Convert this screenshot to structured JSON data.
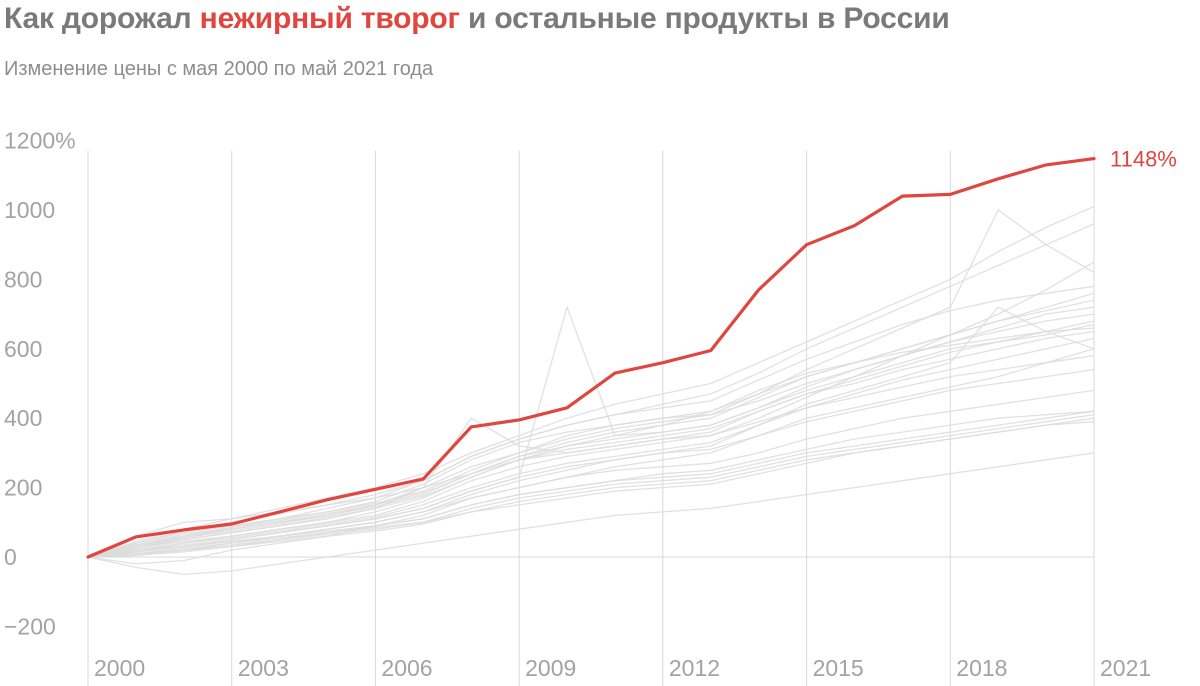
{
  "title": {
    "before": "Как дорожал ",
    "highlight": "нежирный творог",
    "after": " и остальные продукты в России"
  },
  "subtitle": "Изменение цены с мая 2000 по май 2021 года",
  "colors": {
    "highlight": "#e0453e",
    "background_series": "#dcdcdc",
    "grid": "#d9d9d9",
    "tick_text": "#a3a3a3",
    "title": "#7a7a7a"
  },
  "chart_data": {
    "type": "line",
    "xlabel": "",
    "ylabel": "",
    "xlim": [
      2000,
      2021
    ],
    "ylim": [
      -300,
      1200
    ],
    "x_ticks": [
      2000,
      2003,
      2006,
      2009,
      2012,
      2015,
      2018,
      2021
    ],
    "x_tick_labels": [
      "2000",
      "2003",
      "2006",
      "2009",
      "2012",
      "2015",
      "2018",
      "2021"
    ],
    "y_ticks": [
      -200,
      0,
      200,
      400,
      600,
      800,
      1000,
      1200
    ],
    "y_tick_labels": [
      "−200",
      "0",
      "200",
      "400",
      "600",
      "800",
      "1000",
      "1200%"
    ],
    "grid": "vertical lines at x ticks, zero baseline",
    "highlight_series": {
      "name": "нежирный творог",
      "x": [
        2000,
        2001,
        2002,
        2003,
        2004,
        2005,
        2006,
        2007,
        2008,
        2009,
        2010,
        2011,
        2012,
        2013,
        2014,
        2015,
        2016,
        2017,
        2018,
        2019,
        2020,
        2021
      ],
      "values": [
        0,
        58,
        78,
        95,
        130,
        165,
        195,
        225,
        375,
        395,
        430,
        530,
        560,
        595,
        770,
        900,
        955,
        1040,
        1045,
        1090,
        1130,
        1148
      ],
      "end_label": "1148%"
    },
    "background_series_note": "около 90 других продуктов, светло-серые линии",
    "background_series": [
      {
        "values": [
          0,
          30,
          55,
          80,
          100,
          120,
          150,
          200,
          260,
          300,
          350,
          380,
          400,
          420,
          470,
          520,
          560,
          600,
          640,
          680,
          710,
          740
        ]
      },
      {
        "values": [
          0,
          20,
          40,
          60,
          80,
          100,
          130,
          170,
          230,
          280,
          320,
          350,
          360,
          380,
          430,
          480,
          520,
          560,
          600,
          620,
          640,
          670
        ]
      },
      {
        "values": [
          0,
          -20,
          -10,
          20,
          40,
          60,
          90,
          120,
          170,
          200,
          230,
          260,
          280,
          300,
          350,
          400,
          430,
          460,
          490,
          520,
          560,
          600
        ]
      },
      {
        "values": [
          0,
          40,
          70,
          90,
          110,
          130,
          160,
          210,
          280,
          330,
          360,
          380,
          400,
          410,
          450,
          500,
          540,
          580,
          620,
          660,
          700,
          720
        ]
      },
      {
        "values": [
          0,
          10,
          20,
          40,
          60,
          80,
          100,
          130,
          170,
          200,
          230,
          250,
          260,
          270,
          300,
          340,
          370,
          400,
          420,
          440,
          460,
          480
        ]
      },
      {
        "values": [
          0,
          5,
          15,
          30,
          50,
          70,
          90,
          110,
          150,
          180,
          200,
          220,
          240,
          250,
          280,
          310,
          340,
          360,
          380,
          400,
          410,
          420
        ]
      },
      {
        "values": [
          0,
          60,
          100,
          110,
          130,
          150,
          170,
          200,
          240,
          280,
          300,
          320,
          340,
          350,
          390,
          430,
          460,
          490,
          520,
          540,
          560,
          580
        ]
      },
      {
        "values": [
          0,
          30,
          50,
          70,
          90,
          110,
          140,
          200,
          400,
          320,
          300,
          320,
          340,
          360,
          420,
          470,
          500,
          540,
          570,
          600,
          630,
          650
        ]
      },
      {
        "values": [
          0,
          20,
          35,
          50,
          70,
          90,
          110,
          140,
          190,
          230,
          720,
          350,
          380,
          420,
          480,
          530,
          560,
          590,
          610,
          630,
          650,
          660
        ]
      },
      {
        "values": [
          0,
          15,
          30,
          45,
          60,
          80,
          100,
          130,
          180,
          220,
          250,
          280,
          300,
          320,
          380,
          440,
          480,
          520,
          560,
          720,
          650,
          600
        ]
      },
      {
        "values": [
          0,
          25,
          45,
          60,
          80,
          100,
          120,
          160,
          220,
          260,
          290,
          310,
          330,
          350,
          400,
          460,
          520,
          580,
          640,
          700,
          770,
          850
        ]
      },
      {
        "values": [
          0,
          35,
          60,
          85,
          110,
          140,
          170,
          220,
          290,
          340,
          380,
          410,
          440,
          470,
          530,
          600,
          660,
          720,
          780,
          840,
          900,
          960
        ]
      },
      {
        "values": [
          0,
          -30,
          -50,
          -40,
          -20,
          0,
          20,
          40,
          60,
          80,
          100,
          120,
          130,
          140,
          160,
          180,
          200,
          220,
          240,
          260,
          280,
          300
        ]
      },
      {
        "values": [
          0,
          10,
          25,
          40,
          55,
          70,
          85,
          100,
          130,
          150,
          170,
          190,
          200,
          210,
          240,
          270,
          300,
          320,
          340,
          360,
          380,
          400
        ]
      },
      {
        "values": [
          0,
          45,
          80,
          110,
          140,
          170,
          200,
          240,
          300,
          350,
          400,
          440,
          470,
          500,
          560,
          620,
          680,
          740,
          800,
          880,
          950,
          1010
        ]
      },
      {
        "values": [
          0,
          20,
          40,
          55,
          75,
          95,
          115,
          150,
          200,
          240,
          270,
          290,
          310,
          330,
          380,
          430,
          470,
          510,
          540,
          570,
          600,
          630
        ]
      },
      {
        "values": [
          0,
          30,
          55,
          75,
          95,
          120,
          145,
          180,
          240,
          290,
          330,
          360,
          380,
          400,
          460,
          520,
          560,
          600,
          640,
          680,
          720,
          760
        ]
      },
      {
        "values": [
          0,
          15,
          30,
          50,
          70,
          90,
          110,
          140,
          190,
          230,
          260,
          280,
          300,
          310,
          350,
          390,
          420,
          450,
          480,
          500,
          520,
          540
        ]
      },
      {
        "values": [
          0,
          25,
          50,
          70,
          90,
          115,
          140,
          175,
          230,
          280,
          310,
          330,
          350,
          370,
          420,
          470,
          510,
          550,
          590,
          620,
          650,
          680
        ]
      },
      {
        "values": [
          0,
          5,
          20,
          35,
          50,
          65,
          80,
          100,
          140,
          170,
          190,
          210,
          220,
          230,
          260,
          290,
          310,
          330,
          350,
          370,
          390,
          410
        ]
      },
      {
        "values": [
          0,
          35,
          65,
          85,
          105,
          130,
          155,
          190,
          250,
          300,
          340,
          370,
          390,
          410,
          470,
          540,
          600,
          660,
          720,
          1000,
          900,
          820
        ]
      },
      {
        "values": [
          0,
          20,
          30,
          45,
          60,
          75,
          90,
          110,
          150,
          180,
          200,
          220,
          230,
          240,
          270,
          300,
          320,
          340,
          360,
          380,
          400,
          420
        ]
      },
      {
        "values": [
          0,
          40,
          75,
          100,
          125,
          150,
          180,
          220,
          290,
          340,
          380,
          410,
          430,
          450,
          510,
          570,
          620,
          670,
          710,
          740,
          760,
          780
        ]
      },
      {
        "values": [
          0,
          10,
          20,
          30,
          45,
          60,
          75,
          95,
          130,
          160,
          180,
          200,
          210,
          220,
          250,
          280,
          300,
          320,
          340,
          360,
          380,
          390
        ]
      },
      {
        "values": [
          0,
          30,
          60,
          80,
          100,
          125,
          150,
          185,
          240,
          290,
          320,
          340,
          360,
          380,
          430,
          490,
          540,
          580,
          620,
          650,
          680,
          700
        ]
      }
    ]
  }
}
